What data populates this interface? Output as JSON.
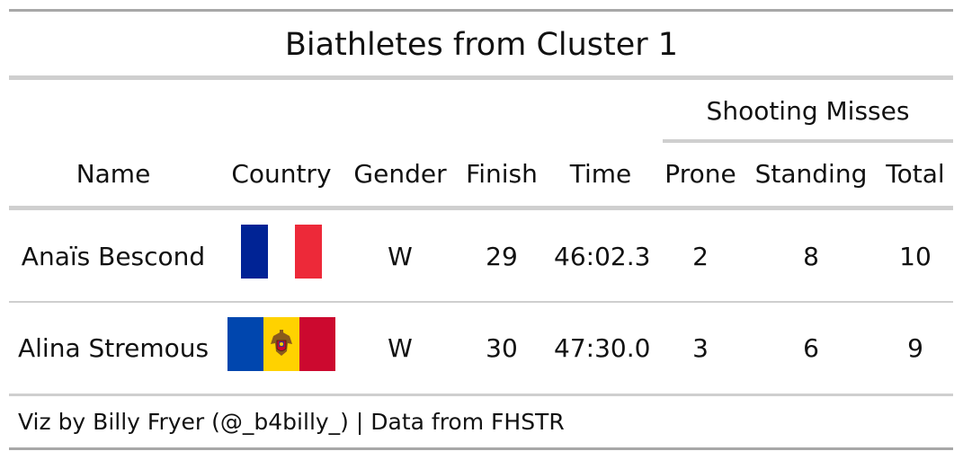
{
  "title": "Biathletes from Cluster 1",
  "spanner": "Shooting Misses",
  "columns": {
    "name": "Name",
    "country": "Country",
    "gender": "Gender",
    "finish": "Finish",
    "time": "Time",
    "prone": "Prone",
    "standing": "Standing",
    "total": "Total"
  },
  "rows": [
    {
      "name": "Anaïs Bescond",
      "flag": "france-flag",
      "gender": "W",
      "finish": "29",
      "time": "46:02.3",
      "prone": "2",
      "standing": "8",
      "total": "10"
    },
    {
      "name": "Alina Stremous",
      "flag": "moldova-flag",
      "gender": "W",
      "finish": "30",
      "time": "47:30.0",
      "prone": "3",
      "standing": "6",
      "total": "9"
    }
  ],
  "footer": "Viz by Billy Fryer (@_b4billy_) | Data from FHSTR",
  "colors": {
    "france_blue": "#002395",
    "france_white": "#ffffff",
    "france_red": "#ED2939",
    "moldova_blue": "#0046AE",
    "moldova_yellow": "#FFD200",
    "moldova_red": "#CC092F"
  }
}
